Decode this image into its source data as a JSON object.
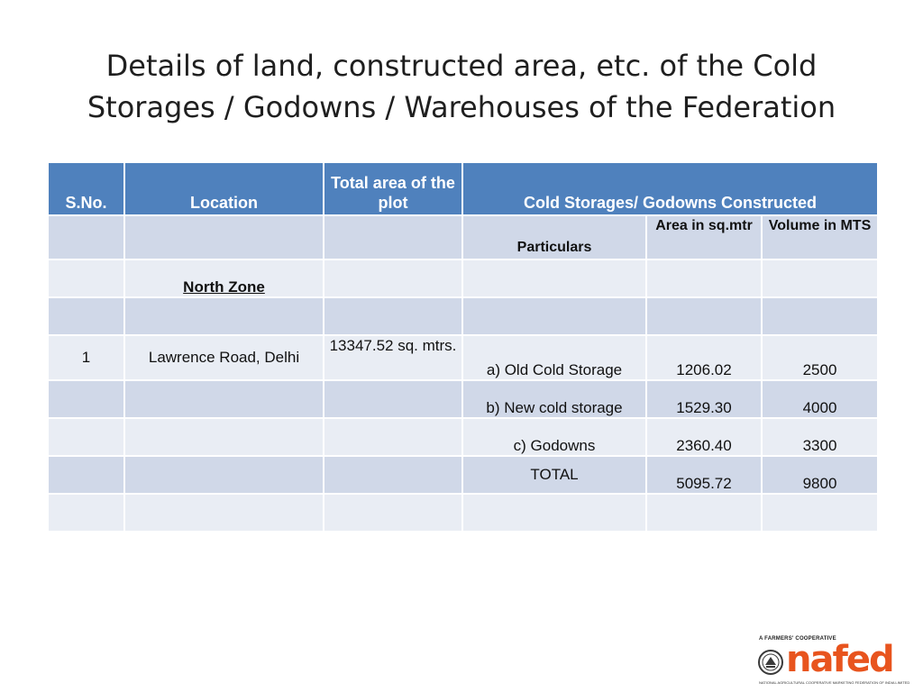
{
  "title": {
    "line1": "Details of land, constructed area, etc. of the Cold",
    "line2": "Storages / Godowns / Warehouses of the Federation"
  },
  "table": {
    "header": {
      "sno": "S.No.",
      "location": "Location",
      "total_area": "Total area of the plot",
      "constructed": "Cold Storages/ Godowns Constructed"
    },
    "subheader": {
      "particulars": "Particulars",
      "area": "Area in sq.mtr",
      "volume": "Volume in MTS"
    },
    "zone": "North Zone",
    "rows": [
      {
        "sno": "1",
        "location": "Lawrence Road, Delhi",
        "total_area": "13347.52 sq. mtrs.",
        "particulars": "a) Old Cold Storage",
        "area": "1206.02",
        "volume": "2500"
      },
      {
        "sno": "",
        "location": "",
        "total_area": "",
        "particulars": "b) New cold storage",
        "area": "1529.30",
        "volume": "4000"
      },
      {
        "sno": "",
        "location": "",
        "total_area": "",
        "particulars": "c) Godowns",
        "area": "2360.40",
        "volume": "3300"
      },
      {
        "sno": "",
        "location": "",
        "total_area": "",
        "particulars": "TOTAL",
        "area": "5095.72",
        "volume": "9800"
      }
    ]
  },
  "logo": {
    "tagline": "A FARMERS' COOPERATIVE",
    "wordmark": "nafed",
    "fullname": "NATIONAL AGRICULTURAL COOPERATIVE MARKETING FEDERATION OF INDIA LIMITED",
    "color": "#e8541e",
    "emblem_icon": "cooperative-emblem-icon"
  },
  "colors": {
    "header": "#4f81bd",
    "row_dark": "#d0d8e8",
    "row_light": "#e9edf4"
  }
}
